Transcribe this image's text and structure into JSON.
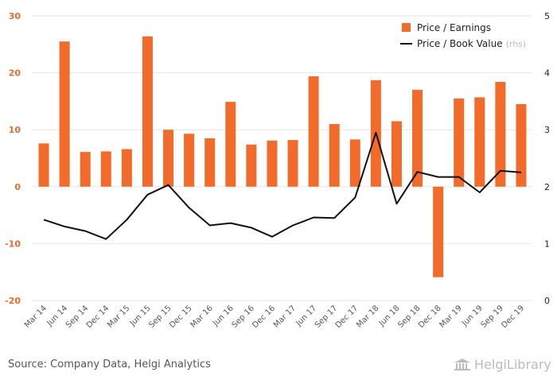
{
  "chart_data": {
    "type": "bar",
    "categories": [
      "Mar 14",
      "Jun 14",
      "Sep 14",
      "Dec 14",
      "Mar 15",
      "Jun 15",
      "Sep 15",
      "Dec 15",
      "Mar 16",
      "Jun 16",
      "Sep 16",
      "Dec 16",
      "Mar 17",
      "Jun 17",
      "Sep 17",
      "Dec 17",
      "Mar 18",
      "Jun 18",
      "Sep 18",
      "Dec 18",
      "Mar 19",
      "Jun 19",
      "Sep 19",
      "Dec 19"
    ],
    "series": [
      {
        "name": "Price / Earnings",
        "type": "bar",
        "axis": "left",
        "color": "#f26b2a",
        "values": [
          7.6,
          25.5,
          6.1,
          6.2,
          6.6,
          26.4,
          10.0,
          9.3,
          8.5,
          14.9,
          7.4,
          8.1,
          8.2,
          19.4,
          11.0,
          8.3,
          18.7,
          11.5,
          17.0,
          -15.9,
          15.5,
          15.7,
          18.4,
          14.5
        ]
      },
      {
        "name": "Price / Book Value",
        "type": "line",
        "axis": "right",
        "color": "#111111",
        "values": [
          1.42,
          1.3,
          1.22,
          1.08,
          1.42,
          1.86,
          2.03,
          1.63,
          1.32,
          1.36,
          1.28,
          1.12,
          1.32,
          1.46,
          1.45,
          1.81,
          2.95,
          1.7,
          2.26,
          2.17,
          2.17,
          1.9,
          2.28,
          2.25
        ]
      }
    ],
    "legend": {
      "position": "top-right",
      "items": [
        {
          "label": "Price / Earnings",
          "note": ""
        },
        {
          "label": "Price / Book Value",
          "note": "(rhs)"
        }
      ]
    },
    "ylim_left": [
      -20,
      30
    ],
    "yticks_left": [
      "30",
      "20",
      "10",
      "0",
      "-10",
      "-20"
    ],
    "ylim_right": [
      0,
      5
    ],
    "yticks_right": [
      "5",
      "4",
      "3",
      "2",
      "1",
      "0"
    ],
    "grid": true,
    "title": "",
    "xlabel": "",
    "ylabel": ""
  },
  "source": "Source: Company Data, Helgi Analytics",
  "logo_text": "HelgiLibrary"
}
